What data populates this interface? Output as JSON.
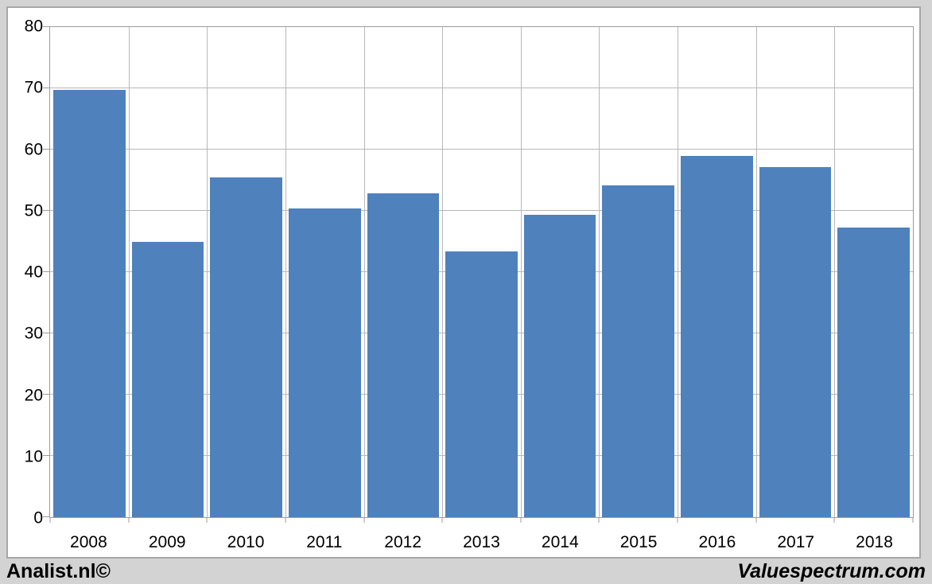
{
  "branding": {
    "left": "Analist.nl©",
    "right": "Valuespectrum.com"
  },
  "chart_data": {
    "type": "bar",
    "title": "",
    "xlabel": "",
    "ylabel": "",
    "categories": [
      "2008",
      "2009",
      "2010",
      "2011",
      "2012",
      "2013",
      "2014",
      "2015",
      "2016",
      "2017",
      "2018"
    ],
    "values": [
      69.8,
      45.0,
      55.5,
      50.4,
      52.9,
      43.4,
      49.4,
      54.1,
      59.0,
      57.2,
      47.3
    ],
    "ylim": [
      0,
      80
    ],
    "ytick_step": 10,
    "ytick_labels": [
      "0",
      "10",
      "20",
      "30",
      "40",
      "50",
      "60",
      "70",
      "80"
    ],
    "grid": true,
    "legend": null,
    "bar_color": "#4f81bd",
    "colors": {
      "canvas_background": "#d3d3d3",
      "panel_background": "#ffffff",
      "frame_border": "#a6a6a6",
      "gridline": "#b8b8b8",
      "axis": "#9c9c9c",
      "text": "#000000"
    }
  }
}
